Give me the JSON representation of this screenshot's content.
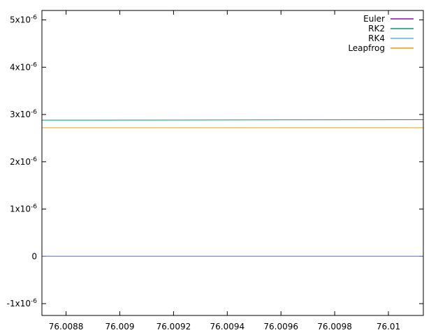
{
  "chart_data": {
    "type": "line",
    "title": "",
    "xlabel": "",
    "ylabel": "",
    "xlim": [
      76.00871,
      76.01013
    ],
    "ylim": [
      -1.25e-06,
      5.2e-06
    ],
    "x_ticks": [
      {
        "value": 76.0088,
        "label": "76.0088"
      },
      {
        "value": 76.009,
        "label": "76.009"
      },
      {
        "value": 76.0092,
        "label": "76.0092"
      },
      {
        "value": 76.0094,
        "label": "76.0094"
      },
      {
        "value": 76.0096,
        "label": "76.0096"
      },
      {
        "value": 76.0098,
        "label": "76.0098"
      },
      {
        "value": 76.01,
        "label": "76.01"
      }
    ],
    "y_ticks": [
      {
        "value": -1e-06,
        "mantissa": "-1",
        "exp": "-6"
      },
      {
        "value": 0,
        "mantissa": "0",
        "exp": ""
      },
      {
        "value": 1e-06,
        "mantissa": "1",
        "exp": "-6"
      },
      {
        "value": 2e-06,
        "mantissa": "2",
        "exp": "-6"
      },
      {
        "value": 3e-06,
        "mantissa": "3",
        "exp": "-6"
      },
      {
        "value": 4e-06,
        "mantissa": "4",
        "exp": "-6"
      },
      {
        "value": 5e-06,
        "mantissa": "5",
        "exp": "-6"
      }
    ],
    "grid": false,
    "legend_position": "top-right",
    "series": [
      {
        "name": "Euler",
        "color": "#9400d3",
        "x": [
          76.00871,
          76.01013
        ],
        "y": [
          0,
          0
        ]
      },
      {
        "name": "RK2",
        "color": "#009e73",
        "x": [
          76.00871,
          76.01013
        ],
        "y": [
          2.88e-06,
          2.89e-06
        ]
      },
      {
        "name": "RK4",
        "color": "#56b4e9",
        "x": [
          76.00871,
          76.01013
        ],
        "y": [
          0,
          0
        ]
      },
      {
        "name": "Leapfrog",
        "color": "#e69f00",
        "x": [
          76.00871,
          76.01013
        ],
        "y": [
          2.72e-06,
          2.72e-06
        ]
      }
    ]
  }
}
